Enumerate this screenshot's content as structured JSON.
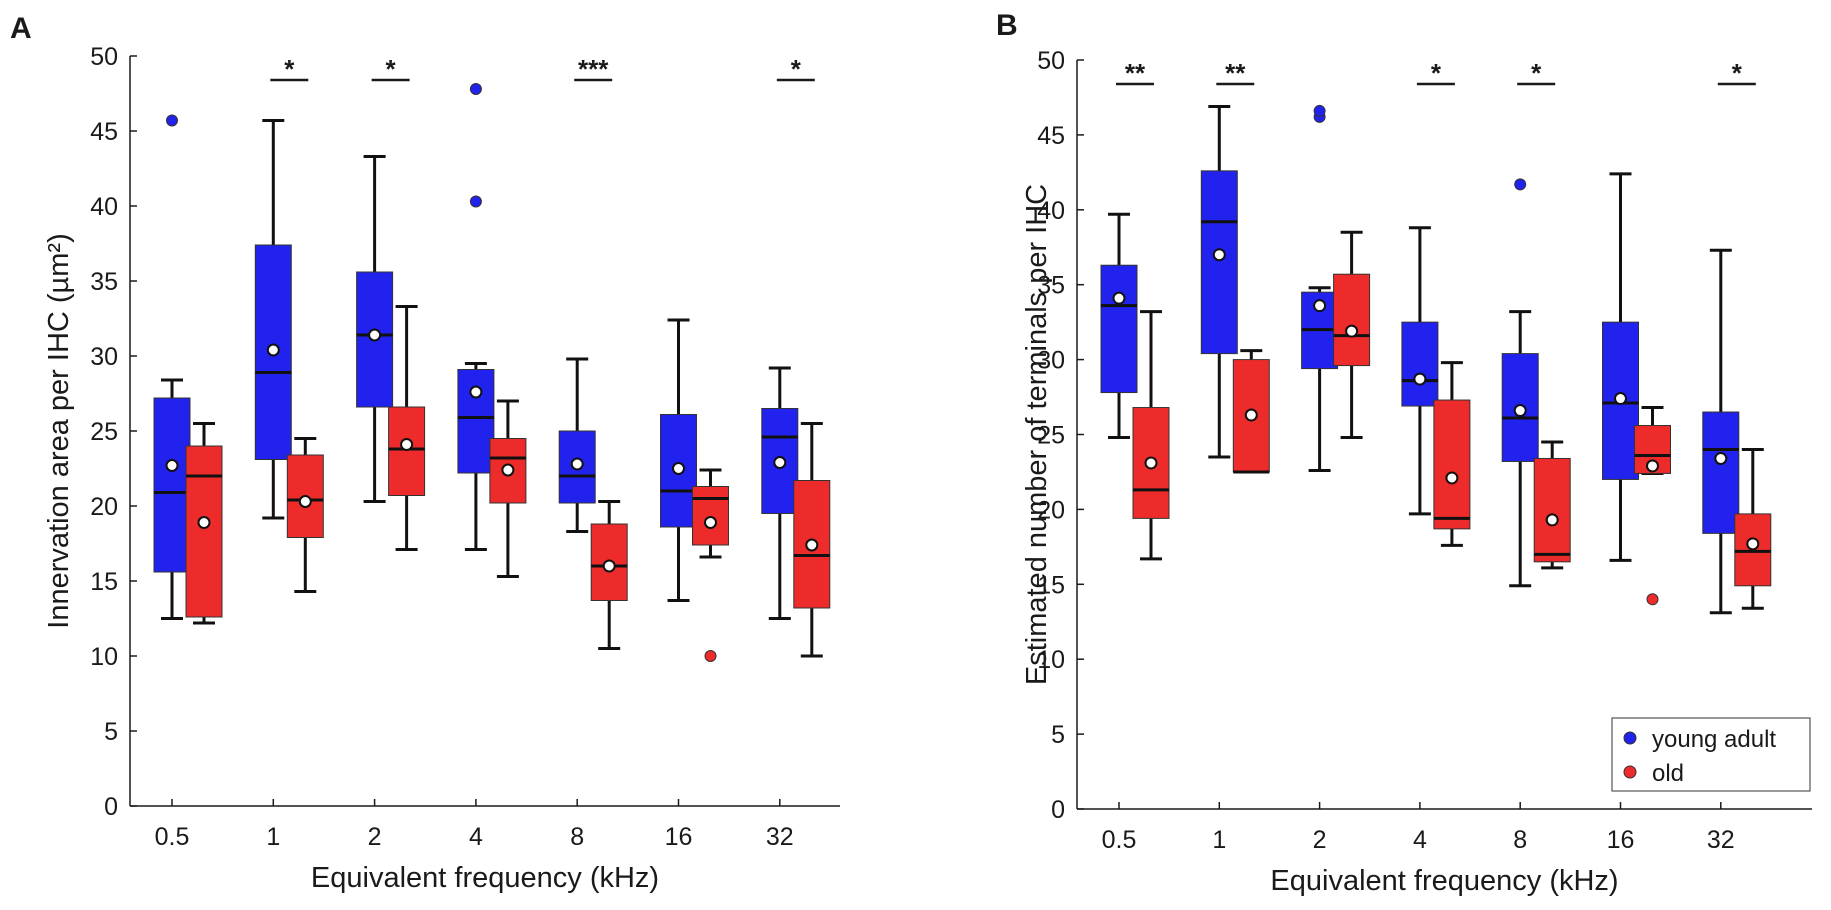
{
  "colors": {
    "young_adult": "#2222ee",
    "old": "#ee2b2b",
    "axis": "#1a1a1a",
    "median": "#111111",
    "mean_marker_fill": "#ffffff"
  },
  "chart_data": [
    {
      "type": "box",
      "panel_label": "A",
      "xlabel": "Equivalent frequency (kHz)",
      "ylabel": "Innervation area per IHC (µm²)",
      "ylim": [
        0,
        50
      ],
      "yticks": [
        0,
        5,
        10,
        15,
        20,
        25,
        30,
        35,
        40,
        45,
        50
      ],
      "categories": [
        "0.5",
        "1",
        "2",
        "4",
        "8",
        "16",
        "32"
      ],
      "series": [
        {
          "name": "young adult",
          "boxes": [
            {
              "whisker_low": 12.5,
              "q1": 15.6,
              "median": 20.9,
              "q3": 27.2,
              "whisker_high": 28.4,
              "mean": 22.7,
              "outliers": [
                45.7
              ]
            },
            {
              "whisker_low": 19.2,
              "q1": 23.1,
              "median": 28.9,
              "q3": 37.4,
              "whisker_high": 45.7,
              "mean": 30.4,
              "outliers": []
            },
            {
              "whisker_low": 20.3,
              "q1": 26.6,
              "median": 31.4,
              "q3": 35.6,
              "whisker_high": 43.3,
              "mean": 31.4,
              "outliers": []
            },
            {
              "whisker_low": 17.1,
              "q1": 22.2,
              "median": 25.9,
              "q3": 29.1,
              "whisker_high": 29.5,
              "mean": 27.6,
              "outliers": [
                40.3,
                47.8
              ]
            },
            {
              "whisker_low": 18.3,
              "q1": 20.2,
              "median": 22.0,
              "q3": 25.0,
              "whisker_high": 29.8,
              "mean": 22.8,
              "outliers": []
            },
            {
              "whisker_low": 13.7,
              "q1": 18.6,
              "median": 21.0,
              "q3": 26.1,
              "whisker_high": 32.4,
              "mean": 22.5,
              "outliers": []
            },
            {
              "whisker_low": 12.5,
              "q1": 19.5,
              "median": 24.6,
              "q3": 26.5,
              "whisker_high": 29.2,
              "mean": 22.9,
              "outliers": []
            }
          ]
        },
        {
          "name": "old",
          "boxes": [
            {
              "whisker_low": 12.2,
              "q1": 12.6,
              "median": 22.0,
              "q3": 24.0,
              "whisker_high": 25.5,
              "mean": 18.9,
              "outliers": []
            },
            {
              "whisker_low": 14.3,
              "q1": 17.9,
              "median": 20.4,
              "q3": 23.4,
              "whisker_high": 24.5,
              "mean": 20.3,
              "outliers": []
            },
            {
              "whisker_low": 17.1,
              "q1": 20.7,
              "median": 23.8,
              "q3": 26.6,
              "whisker_high": 33.3,
              "mean": 24.1,
              "outliers": []
            },
            {
              "whisker_low": 15.3,
              "q1": 20.2,
              "median": 23.2,
              "q3": 24.5,
              "whisker_high": 27.0,
              "mean": 22.4,
              "outliers": []
            },
            {
              "whisker_low": 10.5,
              "q1": 13.7,
              "median": 16.0,
              "q3": 18.8,
              "whisker_high": 20.3,
              "mean": 16.0,
              "outliers": []
            },
            {
              "whisker_low": 16.6,
              "q1": 17.4,
              "median": 20.5,
              "q3": 21.3,
              "whisker_high": 22.4,
              "mean": 18.9,
              "outliers": [
                10.0
              ]
            },
            {
              "whisker_low": 10.0,
              "q1": 13.2,
              "median": 16.7,
              "q3": 21.7,
              "whisker_high": 25.5,
              "mean": 17.4,
              "outliers": []
            }
          ]
        }
      ],
      "significance": [
        {
          "category": "1",
          "label": "*",
          "y": 48.4
        },
        {
          "category": "2",
          "label": "*",
          "y": 48.4
        },
        {
          "category": "8",
          "label": "***",
          "y": 48.4
        },
        {
          "category": "32",
          "label": "*",
          "y": 48.4
        }
      ],
      "legend": null
    },
    {
      "type": "box",
      "panel_label": "B",
      "xlabel": "Equivalent frequency (kHz)",
      "ylabel": "Estimated number of terminals per IHC",
      "ylim": [
        0,
        50
      ],
      "yticks": [
        0,
        5,
        10,
        15,
        20,
        25,
        30,
        35,
        40,
        45,
        50
      ],
      "categories": [
        "0.5",
        "1",
        "2",
        "4",
        "8",
        "16",
        "32"
      ],
      "series": [
        {
          "name": "young adult",
          "boxes": [
            {
              "whisker_low": 24.8,
              "q1": 27.8,
              "median": 33.6,
              "q3": 36.3,
              "whisker_high": 39.7,
              "mean": 34.1,
              "outliers": []
            },
            {
              "whisker_low": 23.5,
              "q1": 30.4,
              "median": 39.2,
              "q3": 42.6,
              "whisker_high": 46.9,
              "mean": 37.0,
              "outliers": []
            },
            {
              "whisker_low": 22.6,
              "q1": 29.4,
              "median": 32.0,
              "q3": 34.5,
              "whisker_high": 34.8,
              "mean": 33.6,
              "outliers": [
                46.2,
                46.6
              ]
            },
            {
              "whisker_low": 19.7,
              "q1": 26.9,
              "median": 28.6,
              "q3": 32.5,
              "whisker_high": 38.8,
              "mean": 28.7,
              "outliers": []
            },
            {
              "whisker_low": 14.9,
              "q1": 23.2,
              "median": 26.1,
              "q3": 30.4,
              "whisker_high": 33.2,
              "mean": 26.6,
              "outliers": [
                41.7
              ]
            },
            {
              "whisker_low": 16.6,
              "q1": 22.0,
              "median": 27.1,
              "q3": 32.5,
              "whisker_high": 42.4,
              "mean": 27.4,
              "outliers": []
            },
            {
              "whisker_low": 13.1,
              "q1": 18.4,
              "median": 24.0,
              "q3": 26.5,
              "whisker_high": 37.3,
              "mean": 23.4,
              "outliers": []
            }
          ]
        },
        {
          "name": "old",
          "boxes": [
            {
              "whisker_low": 16.7,
              "q1": 19.4,
              "median": 21.3,
              "q3": 26.8,
              "whisker_high": 33.2,
              "mean": 23.1,
              "outliers": []
            },
            {
              "whisker_low": 22.5,
              "q1": 22.5,
              "median": 22.5,
              "q3": 30.0,
              "whisker_high": 30.6,
              "mean": 26.3,
              "outliers": []
            },
            {
              "whisker_low": 24.8,
              "q1": 29.6,
              "median": 31.6,
              "q3": 35.7,
              "whisker_high": 38.5,
              "mean": 31.9,
              "outliers": []
            },
            {
              "whisker_low": 17.6,
              "q1": 18.7,
              "median": 19.4,
              "q3": 27.3,
              "whisker_high": 29.8,
              "mean": 22.1,
              "outliers": []
            },
            {
              "whisker_low": 16.1,
              "q1": 16.5,
              "median": 17.0,
              "q3": 23.4,
              "whisker_high": 24.5,
              "mean": 19.3,
              "outliers": []
            },
            {
              "whisker_low": 22.4,
              "q1": 22.4,
              "median": 23.6,
              "q3": 25.6,
              "whisker_high": 26.8,
              "mean": 22.9,
              "outliers": [
                14.0
              ]
            },
            {
              "whisker_low": 13.4,
              "q1": 14.9,
              "median": 17.2,
              "q3": 19.7,
              "whisker_high": 24.0,
              "mean": 17.7,
              "outliers": []
            }
          ]
        }
      ],
      "significance": [
        {
          "category": "0.5",
          "label": "**",
          "y": 48.4
        },
        {
          "category": "1",
          "label": "**",
          "y": 48.4
        },
        {
          "category": "4",
          "label": "*",
          "y": 48.4
        },
        {
          "category": "8",
          "label": "*",
          "y": 48.4
        },
        {
          "category": "32",
          "label": "*",
          "y": 48.4
        }
      ],
      "legend": {
        "placement": "bottom-right",
        "entries": [
          "young adult",
          "old"
        ]
      }
    }
  ]
}
